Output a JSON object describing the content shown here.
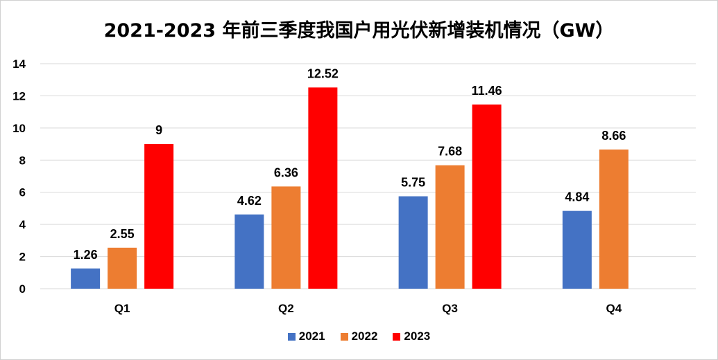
{
  "chart_data": {
    "type": "bar",
    "title": "2021-2023 年前三季度我国户用光伏新增装机情况（GW）",
    "categories": [
      "Q1",
      "Q2",
      "Q3",
      "Q4"
    ],
    "series": [
      {
        "name": "2021",
        "color": "#4472C4",
        "values": [
          1.26,
          4.62,
          5.75,
          4.84
        ],
        "labels": [
          "1.26",
          "4.62",
          "5.75",
          "4.84"
        ]
      },
      {
        "name": "2022",
        "color": "#ED7D31",
        "values": [
          2.55,
          6.36,
          7.68,
          8.66
        ],
        "labels": [
          "2.55",
          "6.36",
          "7.68",
          "8.66"
        ]
      },
      {
        "name": "2023",
        "color": "#FF0000",
        "values": [
          9,
          12.52,
          11.46,
          null
        ],
        "labels": [
          "9",
          "12.52",
          "11.46",
          ""
        ]
      }
    ],
    "ylim": [
      0,
      14
    ],
    "yticks": [
      "0",
      "2",
      "4",
      "6",
      "8",
      "10",
      "12",
      "14"
    ],
    "grid": true,
    "legend_position": "bottom"
  }
}
